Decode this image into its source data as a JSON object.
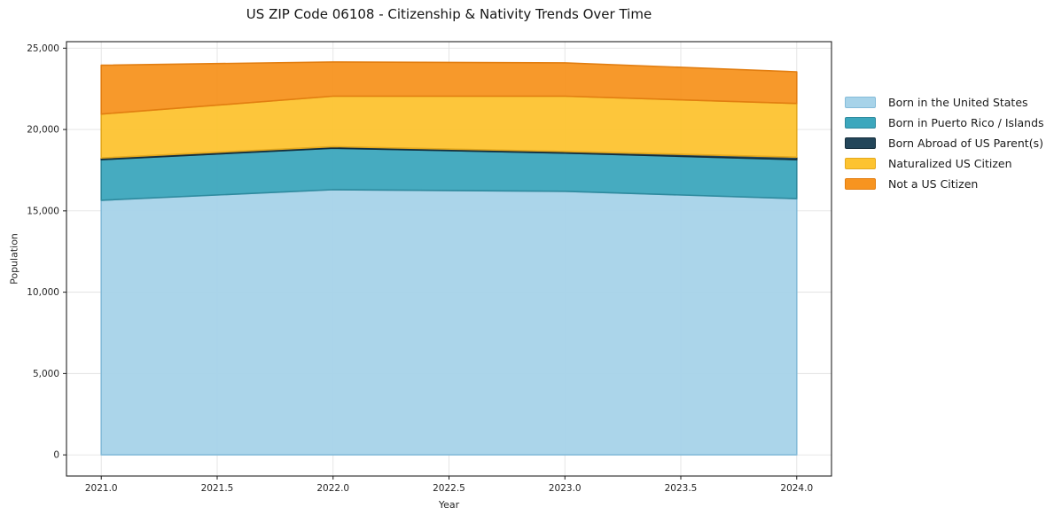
{
  "title": "US ZIP Code 06108 - Citizenship & Nativity Trends Over Time",
  "axes": {
    "xlabel": "Year",
    "ylabel": "Population"
  },
  "chart_data": {
    "type": "area",
    "stacked": true,
    "title": "US ZIP Code 06108 - Citizenship & Nativity Trends Over Time",
    "xlabel": "Year",
    "ylabel": "Population",
    "x": [
      2021,
      2022,
      2023,
      2024
    ],
    "series": [
      {
        "name": "Born in the United States",
        "color": "#a7d3e9",
        "edge_color": "#85bcd9",
        "values": [
          15650,
          16300,
          16200,
          15750
        ]
      },
      {
        "name": "Born in Puerto Rico / Islands",
        "color": "#3ca7bd",
        "edge_color": "#2e8a9e",
        "values": [
          2500,
          2550,
          2350,
          2400
        ]
      },
      {
        "name": "Born Abroad of US Parent(s)",
        "color": "#23465a",
        "edge_color": "#132c3a",
        "values": [
          100,
          100,
          100,
          150
        ]
      },
      {
        "name": "Naturalized US Citizen",
        "color": "#fdc330",
        "edge_color": "#e5a91d",
        "values": [
          2700,
          3100,
          3400,
          3300
        ]
      },
      {
        "name": "Not a US Citizen",
        "color": "#f79420",
        "edge_color": "#e27e11",
        "values": [
          3000,
          2100,
          2050,
          1950
        ]
      }
    ],
    "cumulative_tops": {
      "2021": [
        15650,
        18150,
        18250,
        20950,
        23950
      ],
      "2022": [
        16300,
        18850,
        18950,
        22050,
        24150
      ],
      "2023": [
        16200,
        18550,
        18650,
        22050,
        24100
      ],
      "2024": [
        15750,
        18150,
        18300,
        21600,
        23550
      ]
    },
    "xlim": [
      2020.85,
      2024.15
    ],
    "ylim": [
      -1300,
      25400
    ],
    "xticks": [
      2021.0,
      2021.5,
      2022.0,
      2022.5,
      2023.0,
      2023.5,
      2024.0
    ],
    "xtick_labels": [
      "2021.0",
      "2021.5",
      "2022.0",
      "2022.5",
      "2023.0",
      "2023.5",
      "2024.0"
    ],
    "yticks": [
      0,
      5000,
      10000,
      15000,
      20000,
      25000
    ],
    "ytick_labels": [
      "0",
      "5,000",
      "10,000",
      "15,000",
      "20,000",
      "25,000"
    ],
    "grid": true,
    "grid_color": "#e3e3e3",
    "spine_color": "#222222",
    "background": "#ffffff",
    "legend_position": "right"
  }
}
